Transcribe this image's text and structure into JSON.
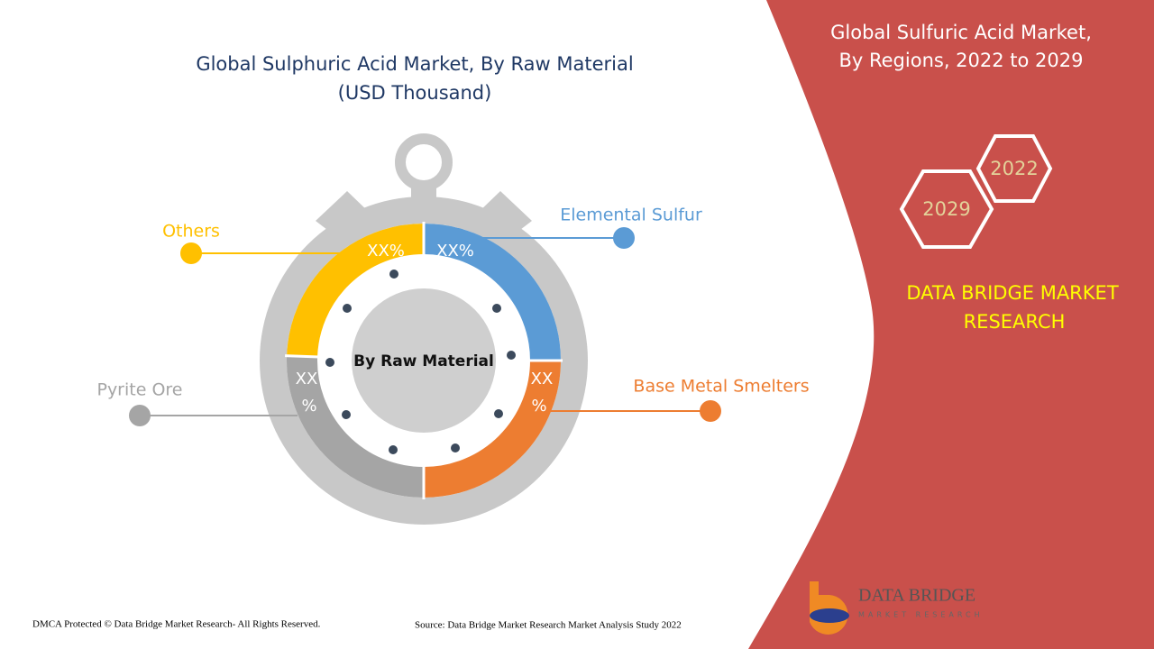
{
  "title": [
    "Global Sulphuric Acid Market, By Raw Material",
    "(USD Thousand)"
  ],
  "center_label": "By Raw Material",
  "segments": [
    {
      "label": "Elemental Sulfur",
      "value_label": "XX%"
    },
    {
      "label": "Base Metal Smelters",
      "value_label": [
        "XX",
        "%"
      ]
    },
    {
      "label": "Pyrite Ore",
      "value_label": [
        "XX",
        "%"
      ]
    },
    {
      "label": "Others",
      "value_label": "XX%"
    }
  ],
  "side_panel": {
    "title": [
      "Global Sulfuric Acid Market,",
      "By Regions, 2022 to 2029"
    ],
    "years": [
      "2022",
      "2029"
    ],
    "brand": [
      "DATA BRIDGE MARKET",
      "RESEARCH"
    ]
  },
  "logo": {
    "name": "DATA BRIDGE",
    "tagline": "MARKET RESEARCH"
  },
  "footer": {
    "copyright": "DMCA Protected © Data Bridge Market Research- All Rights Reserved.",
    "source": "Source: Data Bridge Market Research Market Analysis Study 2022"
  }
}
